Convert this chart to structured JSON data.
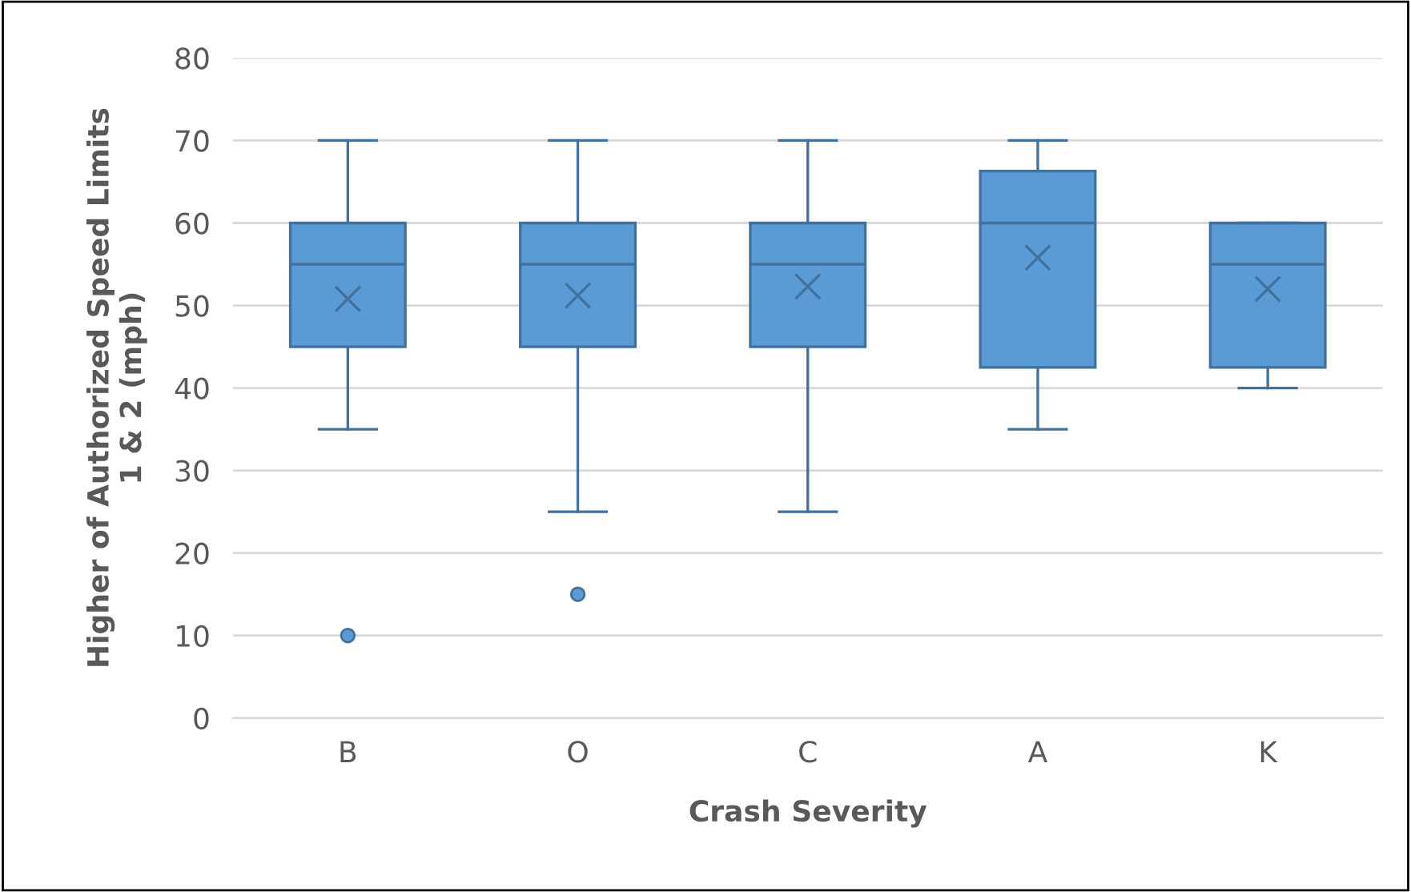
{
  "chart_data": {
    "type": "box",
    "xlabel": "Crash Severity",
    "ylabel": "Higher of Authorized Speed Limits\n1 & 2 (mph)",
    "categories": [
      "B",
      "O",
      "C",
      "A",
      "K"
    ],
    "boxes": [
      {
        "low": 35,
        "q1": 45,
        "median": 55,
        "q3": 60,
        "high": 70,
        "mean": 50.8,
        "outliers": [
          10
        ]
      },
      {
        "low": 25,
        "q1": 45,
        "median": 55,
        "q3": 60,
        "high": 70,
        "mean": 51.2,
        "outliers": [
          15
        ]
      },
      {
        "low": 25,
        "q1": 45,
        "median": 55,
        "q3": 60,
        "high": 70,
        "mean": 52.3
      },
      {
        "low": 35,
        "q1": 42.5,
        "median": 60,
        "q3": 66.3,
        "high": 70,
        "mean": 55.8
      },
      {
        "low": 40,
        "q1": 42.5,
        "median": 55,
        "q3": 60,
        "high": 60,
        "mean": 52
      }
    ],
    "color": "#5b9bd5",
    "ylim": [
      0,
      80
    ],
    "yticks": [
      0,
      10,
      20,
      30,
      40,
      50,
      60,
      70,
      80
    ],
    "grid": "y"
  }
}
